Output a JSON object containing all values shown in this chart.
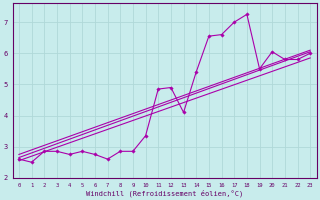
{
  "bg_color": "#c8ecec",
  "grid_color": "#b0d8d8",
  "line_color": "#aa00aa",
  "marker_color": "#aa00aa",
  "xlabel": "Windchill (Refroidissement éolien,°C)",
  "xlim": [
    -0.5,
    23.5
  ],
  "ylim": [
    2.0,
    7.6
  ],
  "yticks": [
    2,
    3,
    4,
    5,
    6,
    7
  ],
  "xticks": [
    0,
    1,
    2,
    3,
    4,
    5,
    6,
    7,
    8,
    9,
    10,
    11,
    12,
    13,
    14,
    15,
    16,
    17,
    18,
    19,
    20,
    21,
    22,
    23
  ],
  "series1_x": [
    0,
    1,
    2,
    3,
    4,
    5,
    6,
    7,
    8,
    9,
    10,
    11,
    12,
    13,
    14,
    15,
    16,
    17,
    18,
    19,
    20,
    21,
    22,
    23
  ],
  "series1_y": [
    2.6,
    2.5,
    2.85,
    2.85,
    2.75,
    2.85,
    2.75,
    2.6,
    2.85,
    2.85,
    3.35,
    4.85,
    4.9,
    4.1,
    5.4,
    6.55,
    6.6,
    7.0,
    7.25,
    5.5,
    6.05,
    5.8,
    5.8,
    6.0
  ],
  "series2_x": [
    0,
    23
  ],
  "series2_y": [
    2.55,
    5.85
  ],
  "series3_x": [
    0,
    23
  ],
  "series3_y": [
    2.65,
    6.05
  ],
  "series4_x": [
    0,
    23
  ],
  "series4_y": [
    2.75,
    6.1
  ]
}
